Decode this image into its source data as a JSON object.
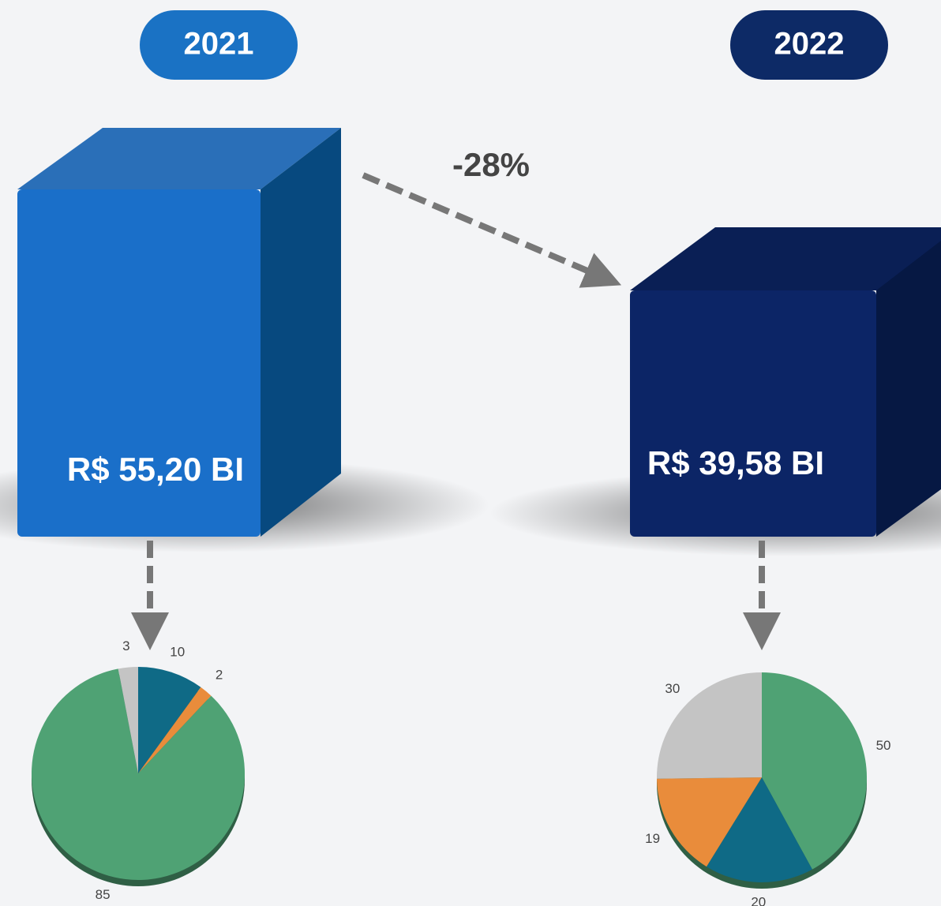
{
  "panels": [
    {
      "year": "2021",
      "amount": "R$ 55,20 BI"
    },
    {
      "year": "2022",
      "amount": "R$ 39,58 BI"
    }
  ],
  "change": "-28%",
  "chart_data": [
    {
      "type": "pie",
      "values": [
        10,
        2,
        85,
        3
      ],
      "colors": [
        "#0f6a86",
        "#e98c3b",
        "#4fa274",
        "#c4c4c4"
      ]
    },
    {
      "type": "pie",
      "values": [
        50,
        20,
        19,
        30
      ],
      "colors": [
        "#4fa274",
        "#0f6a86",
        "#e98c3b",
        "#c4c4c4"
      ]
    }
  ]
}
